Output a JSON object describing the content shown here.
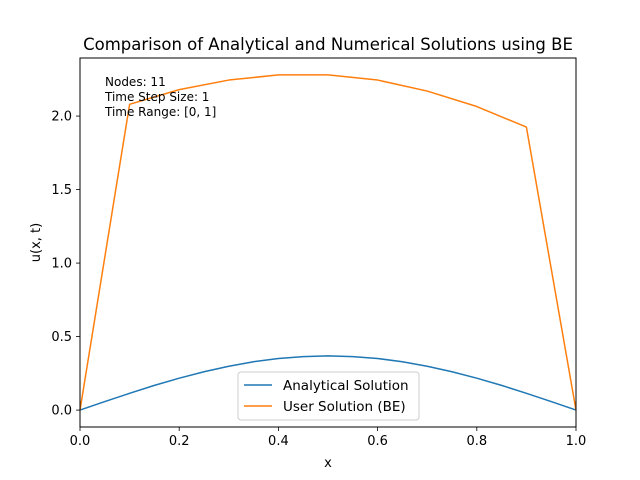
{
  "chart_data": {
    "type": "line",
    "title": "Comparison of Analytical and Numerical Solutions using BE",
    "xlabel": "x",
    "ylabel": "u(x, t)",
    "xlim": [
      0.0,
      1.0
    ],
    "ylim": [
      -0.115,
      2.395
    ],
    "x_ticks": [
      0.0,
      0.2,
      0.4,
      0.6,
      0.8,
      1.0
    ],
    "x_tick_labels": [
      "0.0",
      "0.2",
      "0.4",
      "0.6",
      "0.8",
      "1.0"
    ],
    "y_ticks": [
      0.0,
      0.5,
      1.0,
      1.5,
      2.0
    ],
    "y_tick_labels": [
      "0.0",
      "0.5",
      "1.0",
      "1.5",
      "2.0"
    ],
    "grid": false,
    "legend_position": "lower-center",
    "annotations": [
      "Nodes: 11",
      "Time Step Size: 1",
      "Time Range: [0, 1]"
    ],
    "series": [
      {
        "name": "Analytical Solution",
        "color": "#1f77b4",
        "x": [
          0.0,
          0.05,
          0.1,
          0.15,
          0.2,
          0.25,
          0.3,
          0.35,
          0.4,
          0.45,
          0.5,
          0.55,
          0.6,
          0.65,
          0.7,
          0.75,
          0.8,
          0.85,
          0.9,
          0.95,
          1.0
        ],
        "y": [
          0.0,
          0.058,
          0.114,
          0.168,
          0.217,
          0.261,
          0.298,
          0.329,
          0.351,
          0.364,
          0.369,
          0.364,
          0.351,
          0.329,
          0.298,
          0.261,
          0.217,
          0.168,
          0.114,
          0.058,
          0.0
        ]
      },
      {
        "name": "User Solution (BE)",
        "color": "#ff7f0e",
        "x": [
          0.0,
          0.1,
          0.2,
          0.3,
          0.4,
          0.5,
          0.6,
          0.7,
          0.8,
          0.9,
          1.0
        ],
        "y": [
          0.0,
          2.08,
          2.18,
          2.245,
          2.28,
          2.28,
          2.245,
          2.17,
          2.065,
          1.925,
          0.0
        ]
      }
    ]
  }
}
